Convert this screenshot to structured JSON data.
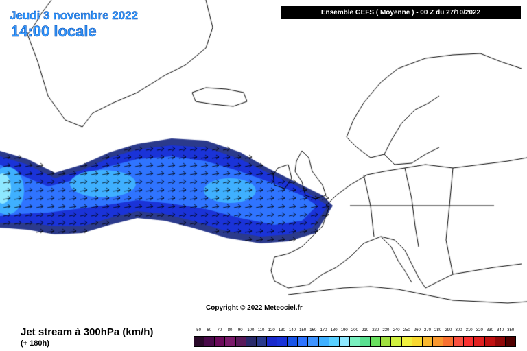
{
  "header": {
    "date": "Jeudi 3 novembre 2022",
    "local_time": "14:00 locale",
    "run_info": "Ensemble GEFS  ( Moyenne )  -  00 Z du 27/10/2022"
  },
  "map": {
    "region": "North Atlantic and Europe",
    "parameter_layer": "jet stream wind speed",
    "colors": {
      "land_outline": "#000000",
      "background": "#ffffff",
      "jet_band_outer": "#2b3a8c",
      "jet_band_mid": "#1a33d8",
      "jet_band_core": "#2f74ff",
      "jet_band_max": "#3fb0ff",
      "jet_band_peak": "#8ee8ff"
    },
    "wind_arrow_icon": "arrow-right-icon"
  },
  "copyright": "Copyright © 2022 Meteociel.fr",
  "footer": {
    "parameter_title": "Jet stream à 300hPa (km/h)",
    "lead_time": "(+ 180h)"
  },
  "color_scale": {
    "values": [
      50,
      60,
      70,
      80,
      90,
      100,
      110,
      120,
      130,
      140,
      150,
      160,
      170,
      180,
      190,
      200,
      210,
      220,
      230,
      240,
      250,
      260,
      270,
      280,
      290,
      300,
      310,
      320,
      330,
      340,
      350
    ],
    "colors": [
      "#2a0a2a",
      "#4a0a4a",
      "#6a0a5a",
      "#7a1a6a",
      "#5a1a5a",
      "#2a2a6a",
      "#2a3a8c",
      "#1a2acc",
      "#1a33d8",
      "#1a55e8",
      "#2f74ff",
      "#3f94ff",
      "#3fb0ff",
      "#5ad0ff",
      "#8ee8ff",
      "#7af0c0",
      "#5ae090",
      "#6ae060",
      "#a0e040",
      "#d0f040",
      "#f0f040",
      "#f8d830",
      "#f8b830",
      "#f89830",
      "#f87030",
      "#f85040",
      "#f83030",
      "#e02020",
      "#c01010",
      "#900808",
      "#500000"
    ]
  }
}
